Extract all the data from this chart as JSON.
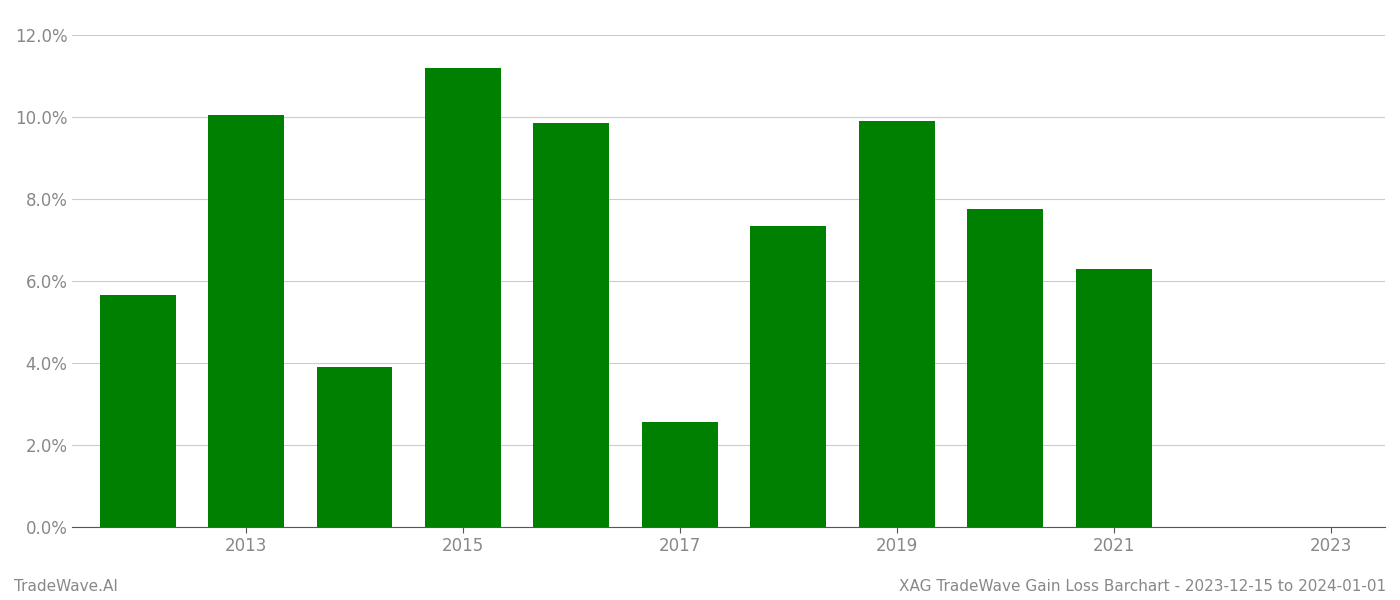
{
  "years": [
    2012,
    2013,
    2014,
    2015,
    2016,
    2017,
    2018,
    2019,
    2020,
    2021,
    2022
  ],
  "values": [
    0.0565,
    0.1005,
    0.039,
    0.112,
    0.0985,
    0.0255,
    0.0735,
    0.099,
    0.0775,
    0.063,
    0.0
  ],
  "bar_color": "#008000",
  "background_color": "#ffffff",
  "ylim": [
    0,
    0.125
  ],
  "yticks": [
    0.0,
    0.02,
    0.04,
    0.06,
    0.08,
    0.1,
    0.12
  ],
  "xtick_positions": [
    2013,
    2015,
    2017,
    2019,
    2021,
    2023
  ],
  "xtick_labels": [
    "2013",
    "2015",
    "2017",
    "2019",
    "2021",
    "2023"
  ],
  "footer_left": "TradeWave.AI",
  "footer_right": "XAG TradeWave Gain Loss Barchart - 2023-12-15 to 2024-01-01",
  "grid_color": "#cccccc",
  "tick_color": "#888888",
  "footer_fontsize": 11,
  "axis_fontsize": 12,
  "bar_width": 0.7
}
